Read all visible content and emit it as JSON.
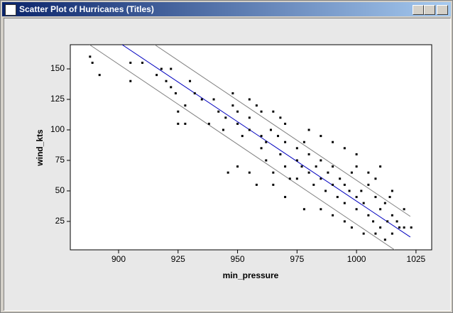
{
  "window_title": "Scatter Plot of Hurricanes (Titles)",
  "chart_data": {
    "type": "scatter",
    "x_label": "min_pressure",
    "y_label": "wind_kts",
    "xlim": [
      879.7,
      1031.6
    ],
    "ylim": [
      1.7,
      169.8
    ],
    "xticks": [
      900,
      925,
      950,
      975,
      1000,
      1025
    ],
    "yticks": [
      25,
      50,
      75,
      100,
      125,
      150
    ],
    "series": [
      {
        "color": "#000000",
        "x": [
          888,
          889,
          892,
          905,
          905,
          910,
          916,
          918,
          920,
          922,
          922,
          924,
          925,
          925,
          928,
          928,
          930,
          932,
          935,
          938,
          940,
          942,
          944,
          945,
          948,
          948,
          950,
          950,
          952,
          955,
          955,
          958,
          960,
          960,
          962,
          962,
          964,
          965,
          967,
          968,
          970,
          970,
          972,
          975,
          975,
          975,
          977,
          978,
          980,
          980,
          982,
          983,
          985,
          985,
          987,
          988,
          990,
          990,
          992,
          993,
          995,
          995,
          997,
          998,
          1000,
          1000,
          1002,
          1003,
          1005,
          1005,
          1007,
          1008,
          1010,
          1010,
          1012,
          1013,
          1015,
          1015,
          1017,
          1018,
          1020,
          1023,
          946,
          950,
          955,
          958,
          965,
          970,
          1000,
          1005,
          1008,
          1010,
          1000,
          995,
          990,
          985,
          980,
          970,
          968,
          965,
          960,
          955,
          978,
          985,
          990,
          995,
          998,
          1003,
          1008,
          1012,
          1015,
          1014,
          1020
        ],
        "y": [
          160,
          155,
          145,
          155,
          140,
          155,
          145,
          150,
          140,
          150,
          135,
          130,
          115,
          105,
          105,
          120,
          140,
          130,
          125,
          105,
          125,
          115,
          100,
          110,
          130,
          120,
          115,
          105,
          95,
          100,
          110,
          120,
          95,
          85,
          90,
          75,
          100,
          65,
          95,
          80,
          90,
          70,
          60,
          85,
          75,
          60,
          70,
          90,
          65,
          80,
          55,
          70,
          60,
          75,
          50,
          65,
          55,
          70,
          45,
          60,
          40,
          55,
          50,
          65,
          45,
          35,
          50,
          40,
          30,
          55,
          25,
          45,
          35,
          20,
          40,
          25,
          30,
          15,
          25,
          20,
          20,
          20,
          65,
          70,
          65,
          55,
          55,
          45,
          70,
          65,
          60,
          70,
          80,
          85,
          90,
          95,
          100,
          105,
          110,
          115,
          115,
          125,
          35,
          35,
          30,
          25,
          20,
          15,
          15,
          10,
          50,
          45,
          35
        ]
      }
    ],
    "lines": [
      {
        "color": "#0000c0",
        "x": [
          901.5,
          1022.6
        ],
        "y": [
          169.8,
          12.2
        ]
      },
      {
        "color": "#808080",
        "x": [
          915.2,
          1022.6
        ],
        "y": [
          169.8,
          29.1
        ]
      },
      {
        "color": "#808080",
        "x": [
          887.8,
          1016
        ],
        "y": [
          169.8,
          1.7
        ]
      }
    ]
  }
}
